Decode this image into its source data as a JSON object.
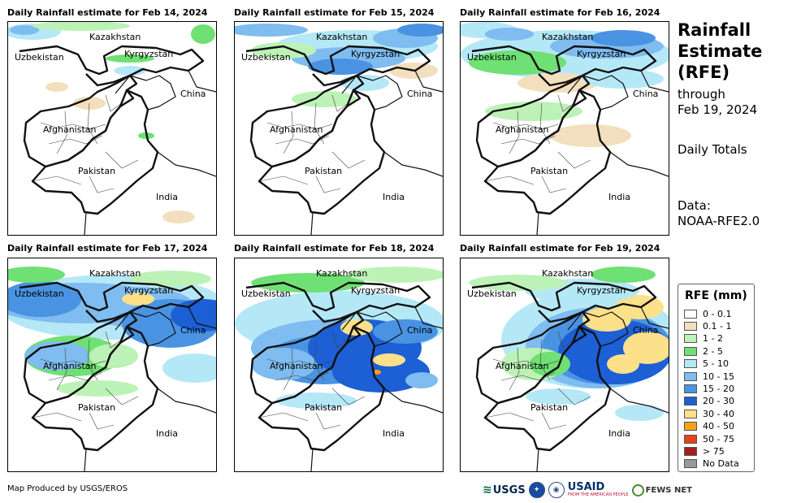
{
  "panels": [
    {
      "title": "Daily Rainfall estimate for Feb 14, 2024",
      "rain": "light"
    },
    {
      "title": "Daily Rainfall estimate for Feb 15, 2024",
      "rain": "north"
    },
    {
      "title": "Daily Rainfall estimate for Feb 16, 2024",
      "rain": "north-wide"
    },
    {
      "title": "Daily Rainfall estimate for Feb 17, 2024",
      "rain": "heavy-west"
    },
    {
      "title": "Daily Rainfall estimate for Feb 18, 2024",
      "rain": "heavy-center"
    },
    {
      "title": "Daily Rainfall estimate for Feb 19, 2024",
      "rain": "heavy-east"
    }
  ],
  "map_labels": {
    "kazakhstan": "Kazakhstan",
    "uzbekistan": "Uzbekistan",
    "kyrgyzstan": "Kyrgyzstan",
    "china": "China",
    "afghanistan": "Afghanistan",
    "pakistan": "Pakistan",
    "india": "India"
  },
  "sidebar": {
    "title_line1": "Rainfall",
    "title_line2": "Estimate",
    "title_line3": "(RFE)",
    "through_label": "through",
    "date": "Feb 19, 2024",
    "totals": "Daily Totals",
    "data_label": "Data:",
    "data_source": "NOAA-RFE2.0"
  },
  "legend": {
    "title": "RFE (mm)",
    "items": [
      {
        "label": "0 - 0.1",
        "color": "#ffffff"
      },
      {
        "label": "0.1 - 1",
        "color": "#f3dfbd"
      },
      {
        "label": "1 - 2",
        "color": "#bdf2b6"
      },
      {
        "label": "2 - 5",
        "color": "#6fe073"
      },
      {
        "label": "5 - 10",
        "color": "#b5e8f7"
      },
      {
        "label": "10 - 15",
        "color": "#7fbcef"
      },
      {
        "label": "15 - 20",
        "color": "#4a93e2"
      },
      {
        "label": "20 - 30",
        "color": "#1d5fd4"
      },
      {
        "label": "30 - 40",
        "color": "#fde08a"
      },
      {
        "label": "40 - 50",
        "color": "#f9a11b"
      },
      {
        "label": "50 - 75",
        "color": "#e8431a"
      },
      {
        "label": "> 75",
        "color": "#a31f1f"
      },
      {
        "label": "No Data",
        "color": "#999999"
      }
    ]
  },
  "footer": {
    "credit": "Map Produced by USGS/EROS",
    "usgs": "USGS",
    "usaid": "USAID",
    "usaid_tagline": "FROM THE AMERICAN PEOPLE",
    "fews": "FEWS NET"
  }
}
